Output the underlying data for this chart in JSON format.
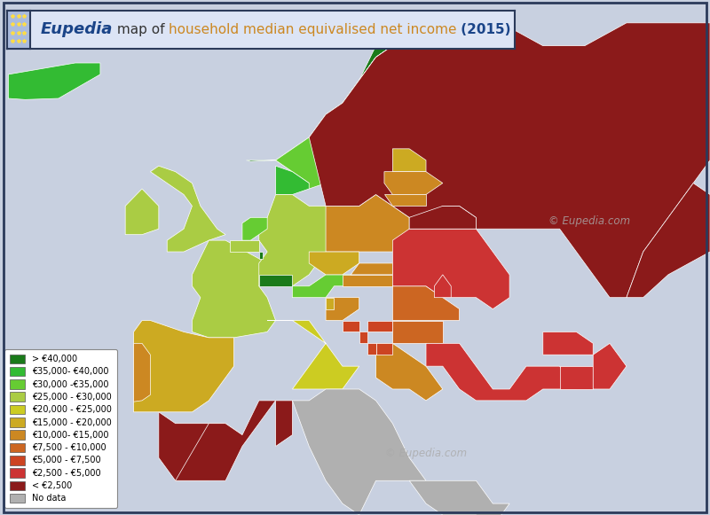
{
  "title_eupedia": "Eupedia",
  "title_map": " map of ",
  "title_orange": "household median equivalised net income",
  "title_year": " (2015)",
  "background_color": "#c8d0e0",
  "sea_color": "#b0bece",
  "title_box_color": "#dce4f5",
  "title_border_color": "#2b3a5a",
  "outer_border_color": "#2b3a5a",
  "legend_labels": [
    "> €40,000",
    "€35,000- €40,000",
    "€30,000 -€35,000",
    "€25,000 - €30,000",
    "€20,000 - €25,000",
    "€15,000 - €20,000",
    "€10,000- €15,000",
    "€7,500 - €10,000",
    "€5,000 - €7,500",
    "€2,500 - €5,000",
    "< €2,500",
    "No data"
  ],
  "legend_colors": [
    "#1a7a1a",
    "#33bb33",
    "#66cc33",
    "#aacc44",
    "#cccc22",
    "#ccaa22",
    "#cc8822",
    "#cc6622",
    "#cc4422",
    "#cc3333",
    "#8b1a1a",
    "#b0b0b0"
  ],
  "country_income_idx": {
    "Norway": 0,
    "Switzerland": 0,
    "Luxembourg": 0,
    "Iceland": 1,
    "Denmark": 1,
    "Sweden": 2,
    "Finland": 2,
    "Austria": 2,
    "Netherlands": 2,
    "Germany": 3,
    "Belgium": 3,
    "France": 3,
    "United Kingdom": 3,
    "Ireland": 3,
    "Italy": 4,
    "Spain": 5,
    "Cyprus": 5,
    "Slovenia": 5,
    "Czechia": 5,
    "Czech Rep.": 5,
    "Czech Republic": 5,
    "Malta": 5,
    "Estonia": 5,
    "Slovakia": 6,
    "Lithuania": 6,
    "Latvia": 6,
    "Portugal": 6,
    "Hungary": 6,
    "Poland": 6,
    "Croatia": 6,
    "Greece": 6,
    "Romania": 7,
    "Bulgaria": 7,
    "Serbia": 8,
    "Montenegro": 8,
    "North Macedonia": 8,
    "Macedonia": 8,
    "Albania": 8,
    "Bosnia and Herz.": 8,
    "Bosnia and Herzegovina": 8,
    "Turkey": 9,
    "Ukraine": 9,
    "Moldova": 9,
    "Armenia": 9,
    "Georgia": 9,
    "Azerbaijan": 9,
    "Kosovo": 9,
    "Belarus": 10,
    "Russia": 10,
    "Kazakhstan": 10,
    "Morocco": 10,
    "Algeria": 10,
    "Tunisia": 10,
    "Libya": 11,
    "Egypt": 11,
    "Syria": 11,
    "Iraq": 11,
    "Iran": 11,
    "Jordan": 11,
    "Israel": 11,
    "Lebanon": 11,
    "Saudi Arabia": 11,
    "Kuwait": 11,
    "Uzbekistan": 11,
    "Turkmenistan": 11,
    "W. Sahara": 11,
    "Mauritania": 11,
    "Mali": 11,
    "Niger": 11,
    "Chad": 11,
    "Sudan": 11,
    "Eritrea": 11,
    "Djibouti": 11,
    "Ethiopia": 11,
    "Somalia": 11,
    "Yemen": 11,
    "Oman": 11,
    "UAE": 11,
    "Qatar": 11,
    "Bahrain": 11,
    "Pakistan": 11,
    "Afghanistan": 11,
    "Tajikistan": 11,
    "Kyrgyzstan": 11,
    "Mongolia": 11,
    "China": 11
  },
  "watermark": "© Eupedia.com",
  "xlim": [
    -25,
    60
  ],
  "ylim": [
    27,
    72
  ],
  "figsize": [
    8.0,
    5.81
  ],
  "dpi": 100
}
